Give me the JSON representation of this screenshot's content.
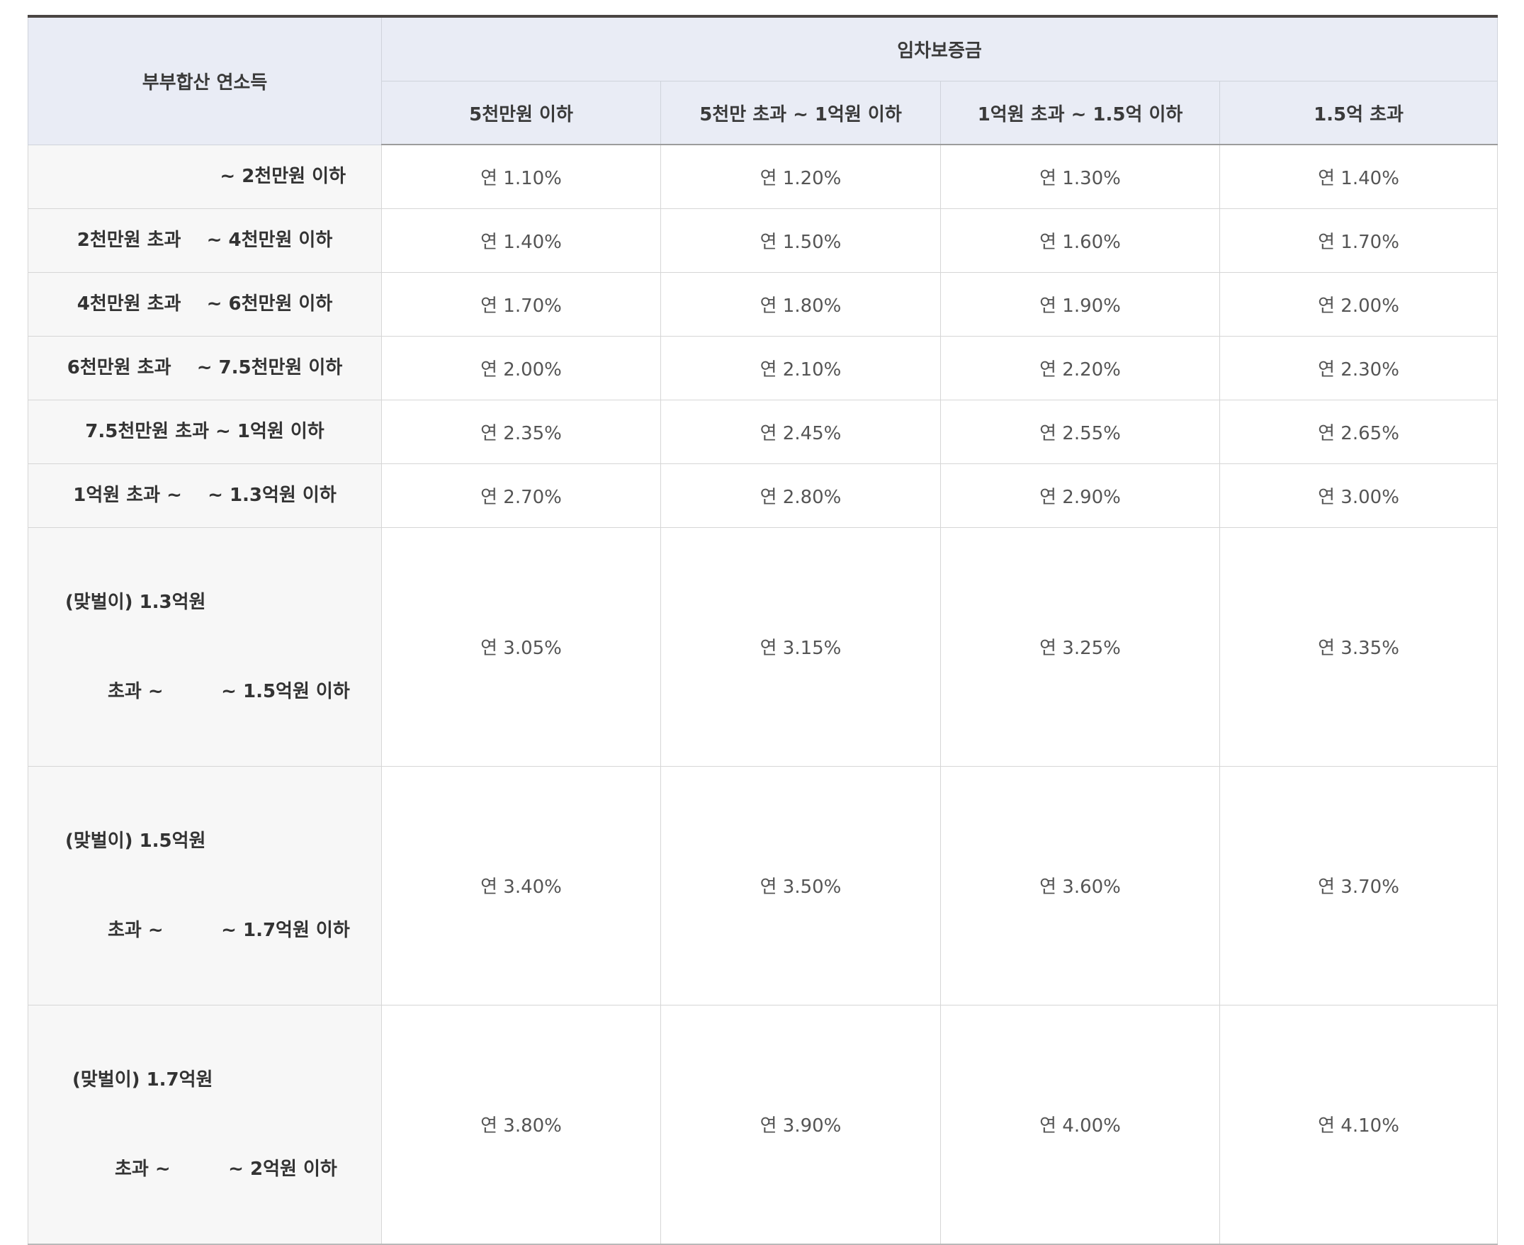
{
  "table": {
    "row_header": "부부합산 연소득",
    "group_header": "임차보증금",
    "columns": [
      "5천만원 이하",
      "5천만 초과 ~ 1억원 이하",
      "1억원 초과 ~ 1.5억 이하",
      "1.5억 초과"
    ],
    "rows": [
      {
        "label": "~ 2천만원 이하",
        "values": [
          "연 1.10%",
          "연 1.20%",
          "연 1.30%",
          "연 1.40%"
        ]
      },
      {
        "label": "2천만원 초과    ~ 4천만원 이하",
        "values": [
          "연 1.40%",
          "연 1.50%",
          "연 1.60%",
          "연 1.70%"
        ]
      },
      {
        "label": "4천만원 초과    ~ 6천만원 이하",
        "values": [
          "연 1.70%",
          "연 1.80%",
          "연 1.90%",
          "연 2.00%"
        ]
      },
      {
        "label": "6천만원 초과    ~ 7.5천만원 이하",
        "values": [
          "연 2.00%",
          "연 2.10%",
          "연 2.20%",
          "연 2.30%"
        ]
      },
      {
        "label": "7.5천만원 초과 ~ 1억원 이하",
        "values": [
          "연 2.35%",
          "연 2.45%",
          "연 2.55%",
          "연 2.65%"
        ]
      },
      {
        "label": "1억원 초과 ~    ~ 1.3억원 이하",
        "values": [
          "연 2.70%",
          "연 2.80%",
          "연 2.90%",
          "연 3.00%"
        ]
      },
      {
        "label_line1": "(맞벌이) 1.3억원",
        "label_line2": "초과 ~         ~ 1.5억원 이하",
        "values": [
          "연 3.05%",
          "연 3.15%",
          "연 3.25%",
          "연 3.35%"
        ]
      },
      {
        "label_line1": "(맞벌이) 1.5억원",
        "label_line2": "초과 ~         ~ 1.7억원 이하",
        "values": [
          "연 3.40%",
          "연 3.50%",
          "연 3.60%",
          "연 3.70%"
        ]
      },
      {
        "label_line1": "(맞벌이) 1.7억원",
        "label_line2": "초과 ~         ~ 2억원 이하",
        "values": [
          "연 3.80%",
          "연 3.90%",
          "연 4.00%",
          "연 4.10%"
        ]
      }
    ]
  }
}
